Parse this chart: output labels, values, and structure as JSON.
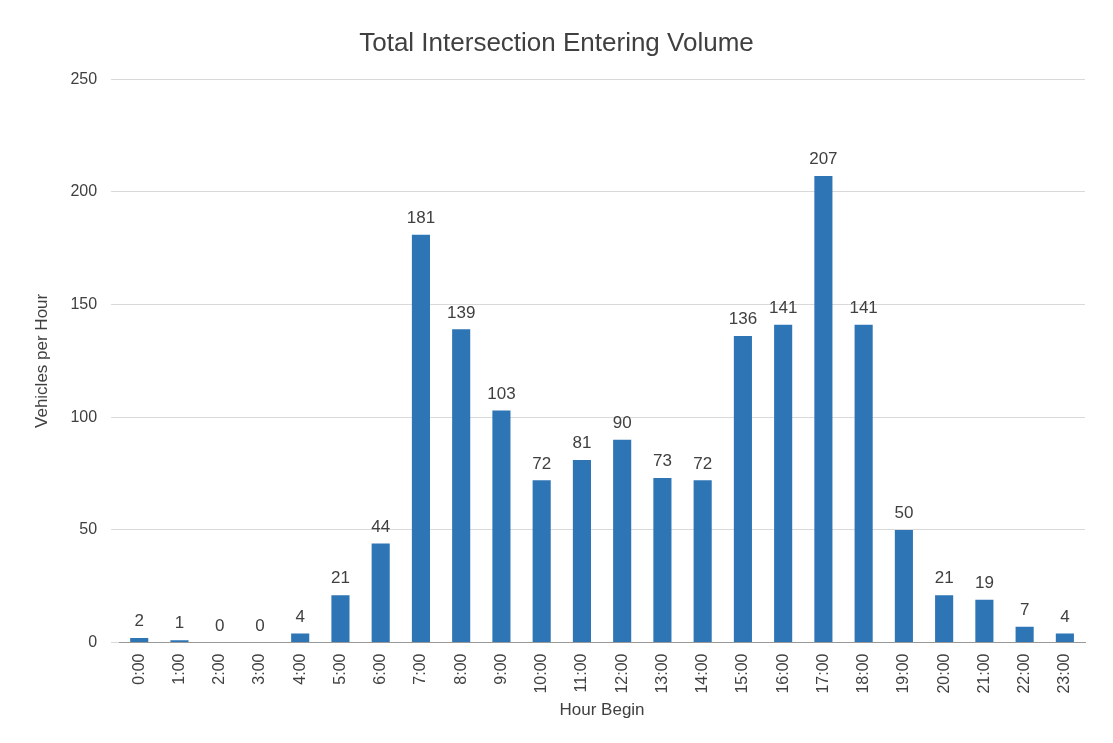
{
  "chart_data": {
    "type": "bar",
    "title": "Total Intersection Entering Volume",
    "xlabel": "Hour Begin",
    "ylabel": "Vehicles per Hour",
    "categories": [
      "0:00",
      "1:00",
      "2:00",
      "3:00",
      "4:00",
      "5:00",
      "6:00",
      "7:00",
      "8:00",
      "9:00",
      "10:00",
      "11:00",
      "12:00",
      "13:00",
      "14:00",
      "15:00",
      "16:00",
      "17:00",
      "18:00",
      "19:00",
      "20:00",
      "21:00",
      "22:00",
      "23:00"
    ],
    "values": [
      2,
      1,
      0,
      0,
      4,
      21,
      44,
      181,
      139,
      103,
      72,
      81,
      90,
      73,
      72,
      136,
      141,
      207,
      141,
      50,
      21,
      19,
      7,
      4
    ],
    "color": "#2e75b6",
    "ylim": [
      0,
      250
    ],
    "yticks": [
      0,
      50,
      100,
      150,
      200,
      250
    ],
    "grid": "y",
    "legend": false,
    "data_labels": true
  }
}
